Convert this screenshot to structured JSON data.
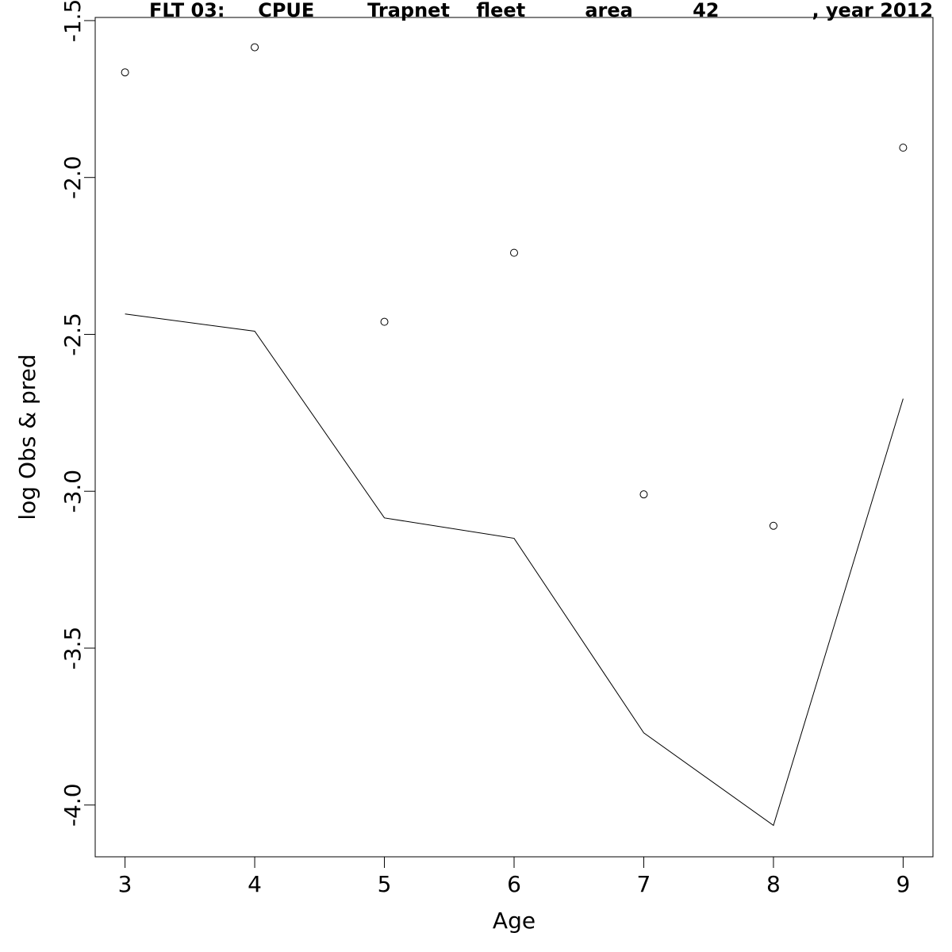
{
  "chart_data": {
    "type": "line",
    "title": "FLT 03:     CPUE        Trapnet    fleet         area         42              , year 2012",
    "xlabel": "Age",
    "ylabel": "log Obs & pred",
    "xlim": [
      2.77,
      9.23
    ],
    "ylim": [
      -4.165,
      -1.49
    ],
    "x_ticks": [
      3,
      4,
      5,
      6,
      7,
      8,
      9
    ],
    "y_ticks": [
      -1.5,
      -2.0,
      -2.5,
      -3.0,
      -3.5,
      -4.0
    ],
    "y_tick_labels": [
      "-1.5",
      "-2.0",
      "-2.5",
      "-3.0",
      "-3.5",
      "-4.0"
    ],
    "grid": false,
    "legend": "none",
    "series": [
      {
        "style": "points",
        "marker": "open-circle",
        "x": [
          3,
          4,
          5,
          6,
          7,
          8,
          9
        ],
        "y": [
          -1.665,
          -1.585,
          -2.46,
          -2.24,
          -3.01,
          -3.11,
          -1.905
        ]
      },
      {
        "style": "line",
        "x": [
          3,
          4,
          5,
          6,
          7,
          8,
          9
        ],
        "y": [
          -2.435,
          -2.49,
          -3.085,
          -3.15,
          -3.77,
          -4.065,
          -2.705
        ]
      }
    ]
  }
}
